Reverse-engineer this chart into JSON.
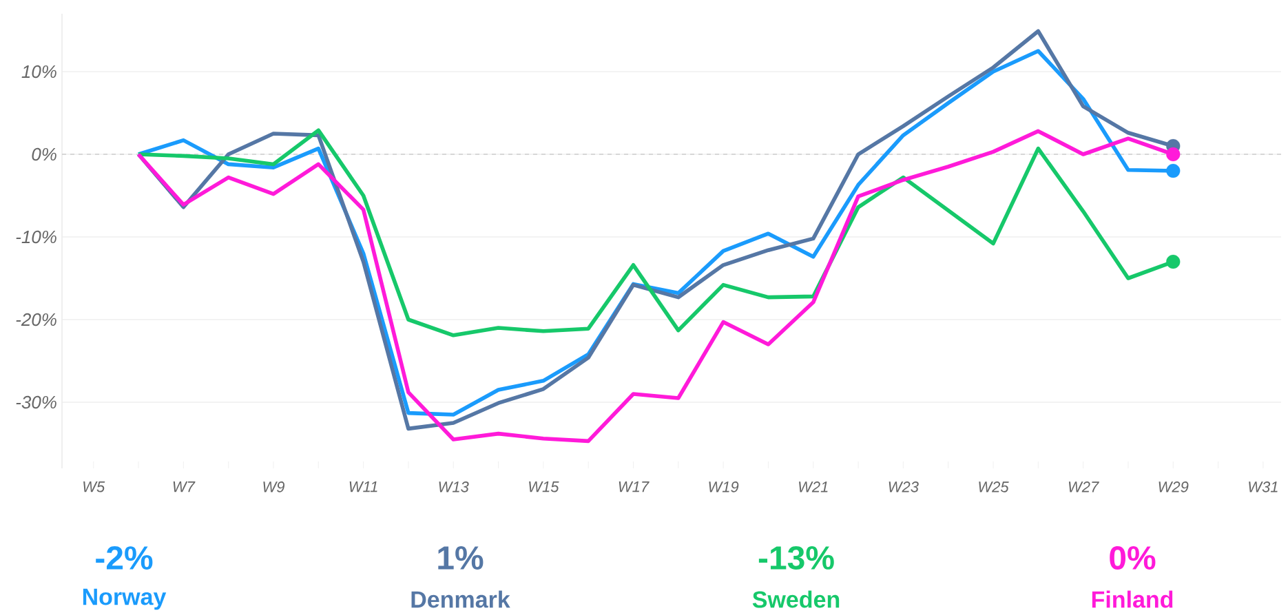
{
  "chart_data": {
    "type": "line",
    "categories": [
      "W5",
      null,
      "W7",
      null,
      "W9",
      null,
      "W11",
      null,
      "W13",
      null,
      "W15",
      null,
      "W17",
      null,
      "W19",
      null,
      "W21",
      null,
      "W23",
      null,
      "W25",
      null,
      "W27",
      null,
      "W29",
      null,
      "W31"
    ],
    "series": [
      {
        "name": "Norway",
        "color": "#1a9bfc",
        "values": [
          null,
          0,
          1.7,
          -1.2,
          -1.6,
          0.7,
          -12,
          -31.3,
          -31.5,
          -28.5,
          -27.4,
          -24.2,
          -15.7,
          -16.8,
          -11.7,
          -9.6,
          -12.4,
          -3.7,
          2.3,
          6.2,
          10.0,
          12.5,
          6.7,
          -1.9,
          -2,
          null,
          null
        ]
      },
      {
        "name": "Denmark",
        "color": "#5577a5",
        "values": [
          null,
          0,
          -6.4,
          0,
          2.5,
          2.3,
          -13,
          -33.2,
          -32.5,
          -30.1,
          -28.4,
          -24.6,
          -15.8,
          -17.3,
          -13.4,
          -11.6,
          -10.2,
          0,
          3.4,
          7.0,
          10.5,
          14.9,
          5.8,
          2.6,
          1,
          null,
          null
        ]
      },
      {
        "name": "Sweden",
        "color": "#16c86a",
        "values": [
          null,
          0,
          -0.2,
          -0.5,
          -1.2,
          2.9,
          -5.0,
          -20.0,
          -21.9,
          -21.0,
          -21.4,
          -21.1,
          -13.4,
          -21.3,
          -15.8,
          -17.3,
          -17.2,
          -6.4,
          -2.8,
          -6.8,
          -10.8,
          0.7,
          -6.9,
          -15.0,
          -13,
          null,
          null
        ]
      },
      {
        "name": "Finland",
        "color": "#ff1ad9",
        "values": [
          null,
          0,
          -6.1,
          -2.8,
          -4.8,
          -1.2,
          -6.7,
          -28.8,
          -34.5,
          -33.8,
          -34.4,
          -34.7,
          -29.0,
          -29.5,
          -20.3,
          -23.0,
          -17.9,
          -5.1,
          -3.1,
          -1.5,
          0.3,
          2.8,
          0,
          1.9,
          0,
          null,
          null
        ]
      }
    ],
    "annotations": [
      "-2%",
      "1%",
      "-13%",
      "0%"
    ],
    "yticks": [
      {
        "value": -30,
        "label": "-30%"
      },
      {
        "value": -20,
        "label": "-20%"
      },
      {
        "value": -10,
        "label": "-10%"
      },
      {
        "value": 0,
        "label": "0%"
      },
      {
        "value": 10,
        "label": "10%"
      }
    ],
    "ylim": [
      -38,
      17
    ],
    "ref_lines": [
      {
        "axis": "y",
        "value": 0,
        "color": "#bbbbbb",
        "line_style": "dashed"
      }
    ],
    "grid": "y",
    "legend": "bottom"
  }
}
